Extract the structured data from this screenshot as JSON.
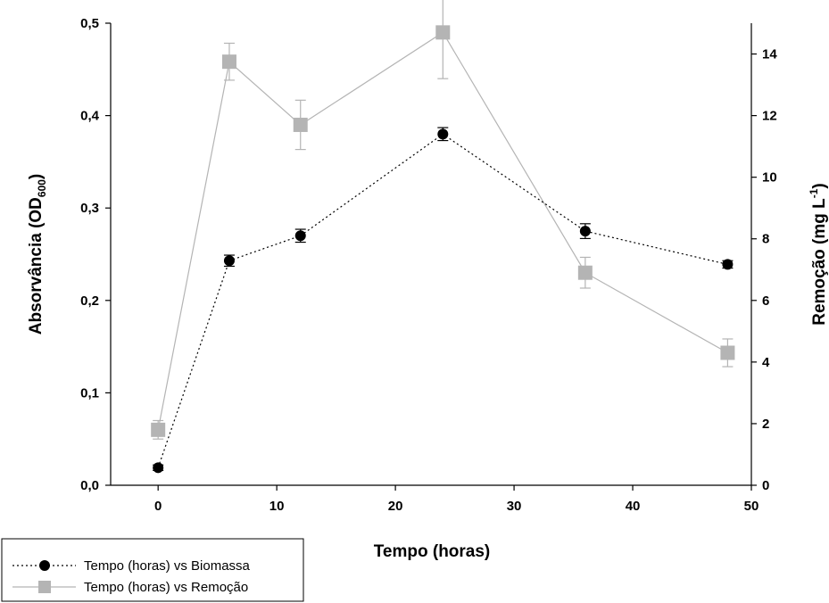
{
  "chart_data": {
    "type": "line",
    "xlabel": "Tempo (horas)",
    "ylabel_left": {
      "main": "Absorvância (OD",
      "sub": "600",
      "end": ")"
    },
    "ylabel_right": {
      "main": "Remoção (mg L",
      "sup": "-1",
      "end": ")"
    },
    "xlim": [
      -4,
      50
    ],
    "xticks": [
      0,
      10,
      20,
      30,
      40,
      50
    ],
    "xtick_labels": [
      "0",
      "10",
      "20",
      "30",
      "40",
      "50"
    ],
    "ylim_left": [
      0,
      0.5
    ],
    "yticks_left": [
      0,
      0.1,
      0.2,
      0.3,
      0.4,
      0.5
    ],
    "ytick_labels_left": [
      "0,0",
      "0,1",
      "0,2",
      "0,3",
      "0,4",
      "0,5"
    ],
    "ylim_right": [
      0,
      15
    ],
    "yticks_right": [
      0,
      2,
      4,
      6,
      8,
      10,
      12,
      14
    ],
    "ytick_labels_right": [
      "0",
      "2",
      "4",
      "6",
      "8",
      "10",
      "12",
      "14"
    ],
    "grid": false,
    "legend_position": "bottom-left, outside plot",
    "series": [
      {
        "name": "Tempo (horas) vs Biomassa",
        "axis": "left",
        "color": "#000000",
        "line_style": "dotted",
        "marker": "circle",
        "x": [
          0,
          6,
          12,
          24,
          36,
          48
        ],
        "y": [
          0.019,
          0.243,
          0.27,
          0.38,
          0.275,
          0.239
        ],
        "err": [
          0.003,
          0.006,
          0.007,
          0.007,
          0.008,
          0.004
        ]
      },
      {
        "name": "Tempo (horas) vs Remoção",
        "axis": "right",
        "color": "#b4b4b4",
        "line_style": "solid",
        "marker": "square",
        "x": [
          0,
          6,
          12,
          24,
          36,
          48
        ],
        "y": [
          1.8,
          13.75,
          11.7,
          14.7,
          6.9,
          4.3
        ],
        "err": [
          0.3,
          0.6,
          0.8,
          1.5,
          0.5,
          0.45
        ]
      }
    ]
  }
}
